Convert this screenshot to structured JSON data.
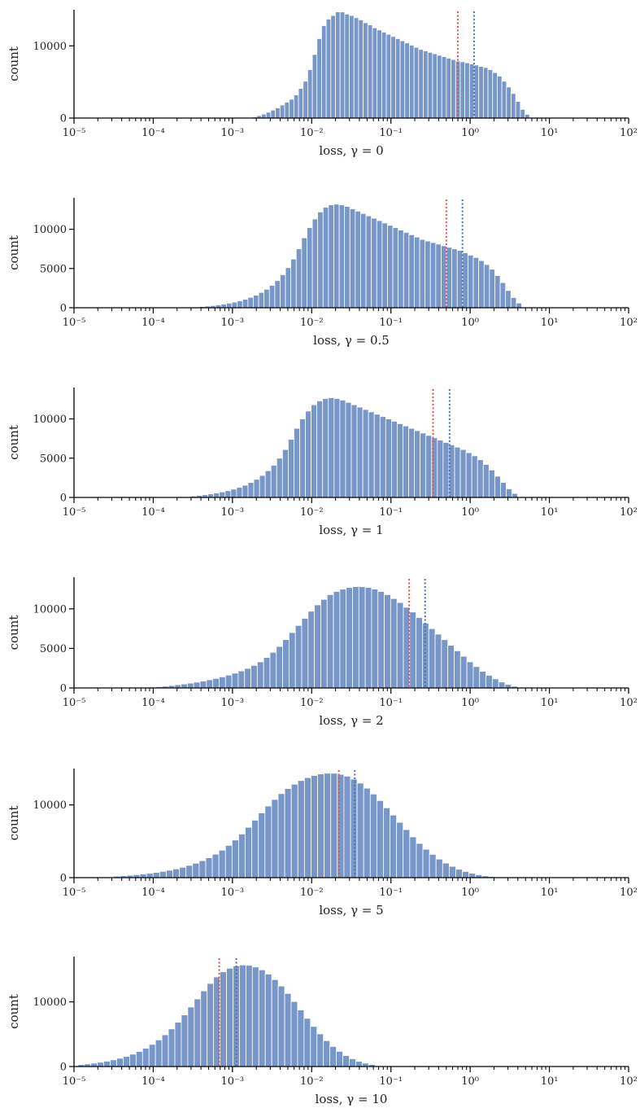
{
  "chart_data": [
    {
      "type": "bar",
      "xlabel": "loss, γ = 0",
      "ylabel": "count",
      "x_scale": "log",
      "xlim": [
        1e-05,
        100
      ],
      "ylim": [
        0,
        15000
      ],
      "yticks": [
        0,
        10000
      ],
      "xticks": [
        "10⁻⁵",
        "10⁻⁴",
        "10⁻³",
        "10⁻²",
        "10⁻¹",
        "10⁰",
        "10¹",
        "10²"
      ],
      "bin_log10_range": [
        -2.75,
        0.75
      ],
      "values": [
        150,
        350,
        550,
        800,
        1100,
        1400,
        1800,
        2200,
        2600,
        3200,
        4100,
        5100,
        6700,
        8800,
        11000,
        12800,
        13700,
        14200,
        14700,
        14700,
        14400,
        14200,
        13900,
        13600,
        13200,
        12900,
        12500,
        12200,
        11900,
        11600,
        11300,
        11000,
        10700,
        10400,
        10100,
        9800,
        9500,
        9300,
        9100,
        8900,
        8700,
        8500,
        8300,
        8100,
        7900,
        7800,
        7650,
        7500,
        7350,
        7150,
        7000,
        6700,
        6300,
        5800,
        5100,
        4300,
        3400,
        2300,
        1200,
        500
      ],
      "vlines": [
        {
          "x": 0.7,
          "color": "#d9534f"
        },
        {
          "x": 1.12,
          "color": "#4c72b0"
        }
      ]
    },
    {
      "type": "bar",
      "xlabel": "loss, γ = 0.5",
      "ylabel": "count",
      "x_scale": "log",
      "xlim": [
        1e-05,
        100
      ],
      "ylim": [
        0,
        14000
      ],
      "yticks": [
        0,
        5000,
        10000
      ],
      "xticks": [
        "10⁻⁵",
        "10⁻⁴",
        "10⁻³",
        "10⁻²",
        "10⁻¹",
        "10⁰",
        "10¹",
        "10²"
      ],
      "bin_log10_range": [
        -3.55,
        0.65
      ],
      "values": [
        60,
        100,
        150,
        210,
        280,
        360,
        460,
        580,
        720,
        880,
        1080,
        1320,
        1600,
        1950,
        2350,
        2850,
        3450,
        4200,
        5100,
        6200,
        7500,
        8900,
        10200,
        11300,
        12200,
        12800,
        13100,
        13200,
        13100,
        12900,
        12600,
        12300,
        12000,
        11700,
        11400,
        11100,
        10800,
        10500,
        10200,
        9900,
        9600,
        9300,
        9000,
        8700,
        8500,
        8300,
        8100,
        7900,
        7700,
        7500,
        7300,
        7000,
        6700,
        6400,
        6000,
        5500,
        4900,
        4100,
        3200,
        2200,
        1300,
        600
      ],
      "vlines": [
        {
          "x": 0.5,
          "color": "#d9534f"
        },
        {
          "x": 0.8,
          "color": "#4c72b0"
        }
      ]
    },
    {
      "type": "bar",
      "xlabel": "loss, γ = 1",
      "ylabel": "count",
      "x_scale": "log",
      "xlim": [
        1e-05,
        100
      ],
      "ylim": [
        0,
        14000
      ],
      "yticks": [
        0,
        5000,
        10000
      ],
      "xticks": [
        "10⁻⁵",
        "10⁻⁴",
        "10⁻³",
        "10⁻²",
        "10⁻¹",
        "10⁰",
        "10¹",
        "10²"
      ],
      "bin_log10_range": [
        -3.6,
        0.6
      ],
      "values": [
        100,
        180,
        260,
        350,
        450,
        560,
        700,
        860,
        1050,
        1280,
        1550,
        1900,
        2300,
        2800,
        3400,
        4100,
        5000,
        6100,
        7400,
        8800,
        10000,
        11000,
        11800,
        12300,
        12600,
        12700,
        12600,
        12400,
        12100,
        11800,
        11500,
        11200,
        10900,
        10600,
        10300,
        10000,
        9700,
        9400,
        9100,
        8800,
        8500,
        8200,
        7900,
        7600,
        7300,
        7000,
        6700,
        6400,
        6100,
        5700,
        5300,
        4800,
        4200,
        3500,
        2700,
        1900,
        1100,
        500
      ],
      "vlines": [
        {
          "x": 0.34,
          "color": "#d9534f"
        },
        {
          "x": 0.55,
          "color": "#4c72b0"
        }
      ]
    },
    {
      "type": "bar",
      "xlabel": "loss, γ = 2",
      "ylabel": "count",
      "x_scale": "log",
      "xlim": [
        1e-05,
        100
      ],
      "ylim": [
        0,
        14000
      ],
      "yticks": [
        0,
        5000,
        10000
      ],
      "xticks": [
        "10⁻⁵",
        "10⁻⁴",
        "10⁻³",
        "10⁻²",
        "10⁻¹",
        "10⁰",
        "10¹",
        "10²"
      ],
      "bin_log10_range": [
        -4.05,
        0.6
      ],
      "values": [
        100,
        160,
        230,
        310,
        400,
        500,
        610,
        730,
        870,
        1030,
        1200,
        1400,
        1620,
        1870,
        2150,
        2470,
        2850,
        3300,
        3850,
        4500,
        5250,
        6100,
        7000,
        7900,
        8800,
        9700,
        10500,
        11200,
        11800,
        12200,
        12500,
        12700,
        12800,
        12800,
        12700,
        12500,
        12200,
        11800,
        11300,
        10800,
        10200,
        9600,
        8900,
        8200,
        7500,
        6800,
        6100,
        5400,
        4700,
        4000,
        3300,
        2700,
        2100,
        1600,
        1150,
        750,
        450,
        220
      ],
      "vlines": [
        {
          "x": 0.17,
          "color": "#d9534f"
        },
        {
          "x": 0.27,
          "color": "#4c72b0"
        }
      ]
    },
    {
      "type": "bar",
      "xlabel": "loss, γ = 5",
      "ylabel": "count",
      "x_scale": "log",
      "xlim": [
        1e-05,
        100
      ],
      "ylim": [
        0,
        15000
      ],
      "yticks": [
        0,
        10000
      ],
      "xticks": [
        "10⁻⁵",
        "10⁻⁴",
        "10⁻³",
        "10⁻²",
        "10⁻¹",
        "10⁰",
        "10¹",
        "10²"
      ],
      "bin_log10_range": [
        -4.5,
        0.4
      ],
      "values": [
        200,
        260,
        330,
        410,
        500,
        600,
        720,
        860,
        1020,
        1200,
        1420,
        1680,
        1980,
        2330,
        2740,
        3220,
        3780,
        4430,
        5170,
        6000,
        6920,
        7900,
        8900,
        9850,
        10750,
        11550,
        12250,
        12850,
        13350,
        13750,
        14050,
        14250,
        14350,
        14350,
        14200,
        13950,
        13550,
        13000,
        12300,
        11500,
        10600,
        9600,
        8600,
        7600,
        6600,
        5600,
        4700,
        3900,
        3200,
        2550,
        2000,
        1550,
        1150,
        850,
        600,
        400,
        250,
        150,
        80
      ],
      "vlines": [
        {
          "x": 0.022,
          "color": "#d9534f"
        },
        {
          "x": 0.035,
          "color": "#4c72b0"
        }
      ]
    },
    {
      "type": "bar",
      "xlabel": "loss, γ = 10",
      "ylabel": "count",
      "x_scale": "log",
      "xlim": [
        1e-05,
        100
      ],
      "ylim": [
        0,
        17000
      ],
      "yticks": [
        0,
        10000
      ],
      "xticks": [
        "10⁻⁵",
        "10⁻⁴",
        "10⁻³",
        "10⁻²",
        "10⁻¹",
        "10⁰",
        "10¹",
        "10²"
      ],
      "bin_log10_range": [
        -4.95,
        -1.2
      ],
      "values": [
        300,
        400,
        520,
        660,
        830,
        1030,
        1270,
        1560,
        1910,
        2330,
        2830,
        3420,
        4110,
        4910,
        5820,
        6850,
        7980,
        9200,
        10450,
        11700,
        12850,
        13850,
        14650,
        15200,
        15550,
        15700,
        15650,
        15400,
        14950,
        14300,
        13450,
        12450,
        11300,
        10050,
        8750,
        7450,
        6200,
        5050,
        4000,
        3100,
        2350,
        1700,
        1200,
        800,
        520,
        320
      ],
      "vlines": [
        {
          "x": 0.00068,
          "color": "#d9534f"
        },
        {
          "x": 0.00112,
          "color": "#4c72b0"
        }
      ]
    }
  ],
  "colors": {
    "bar_fill": "#7896c8",
    "bar_edge": "#ffffff",
    "axis": "#000000"
  }
}
